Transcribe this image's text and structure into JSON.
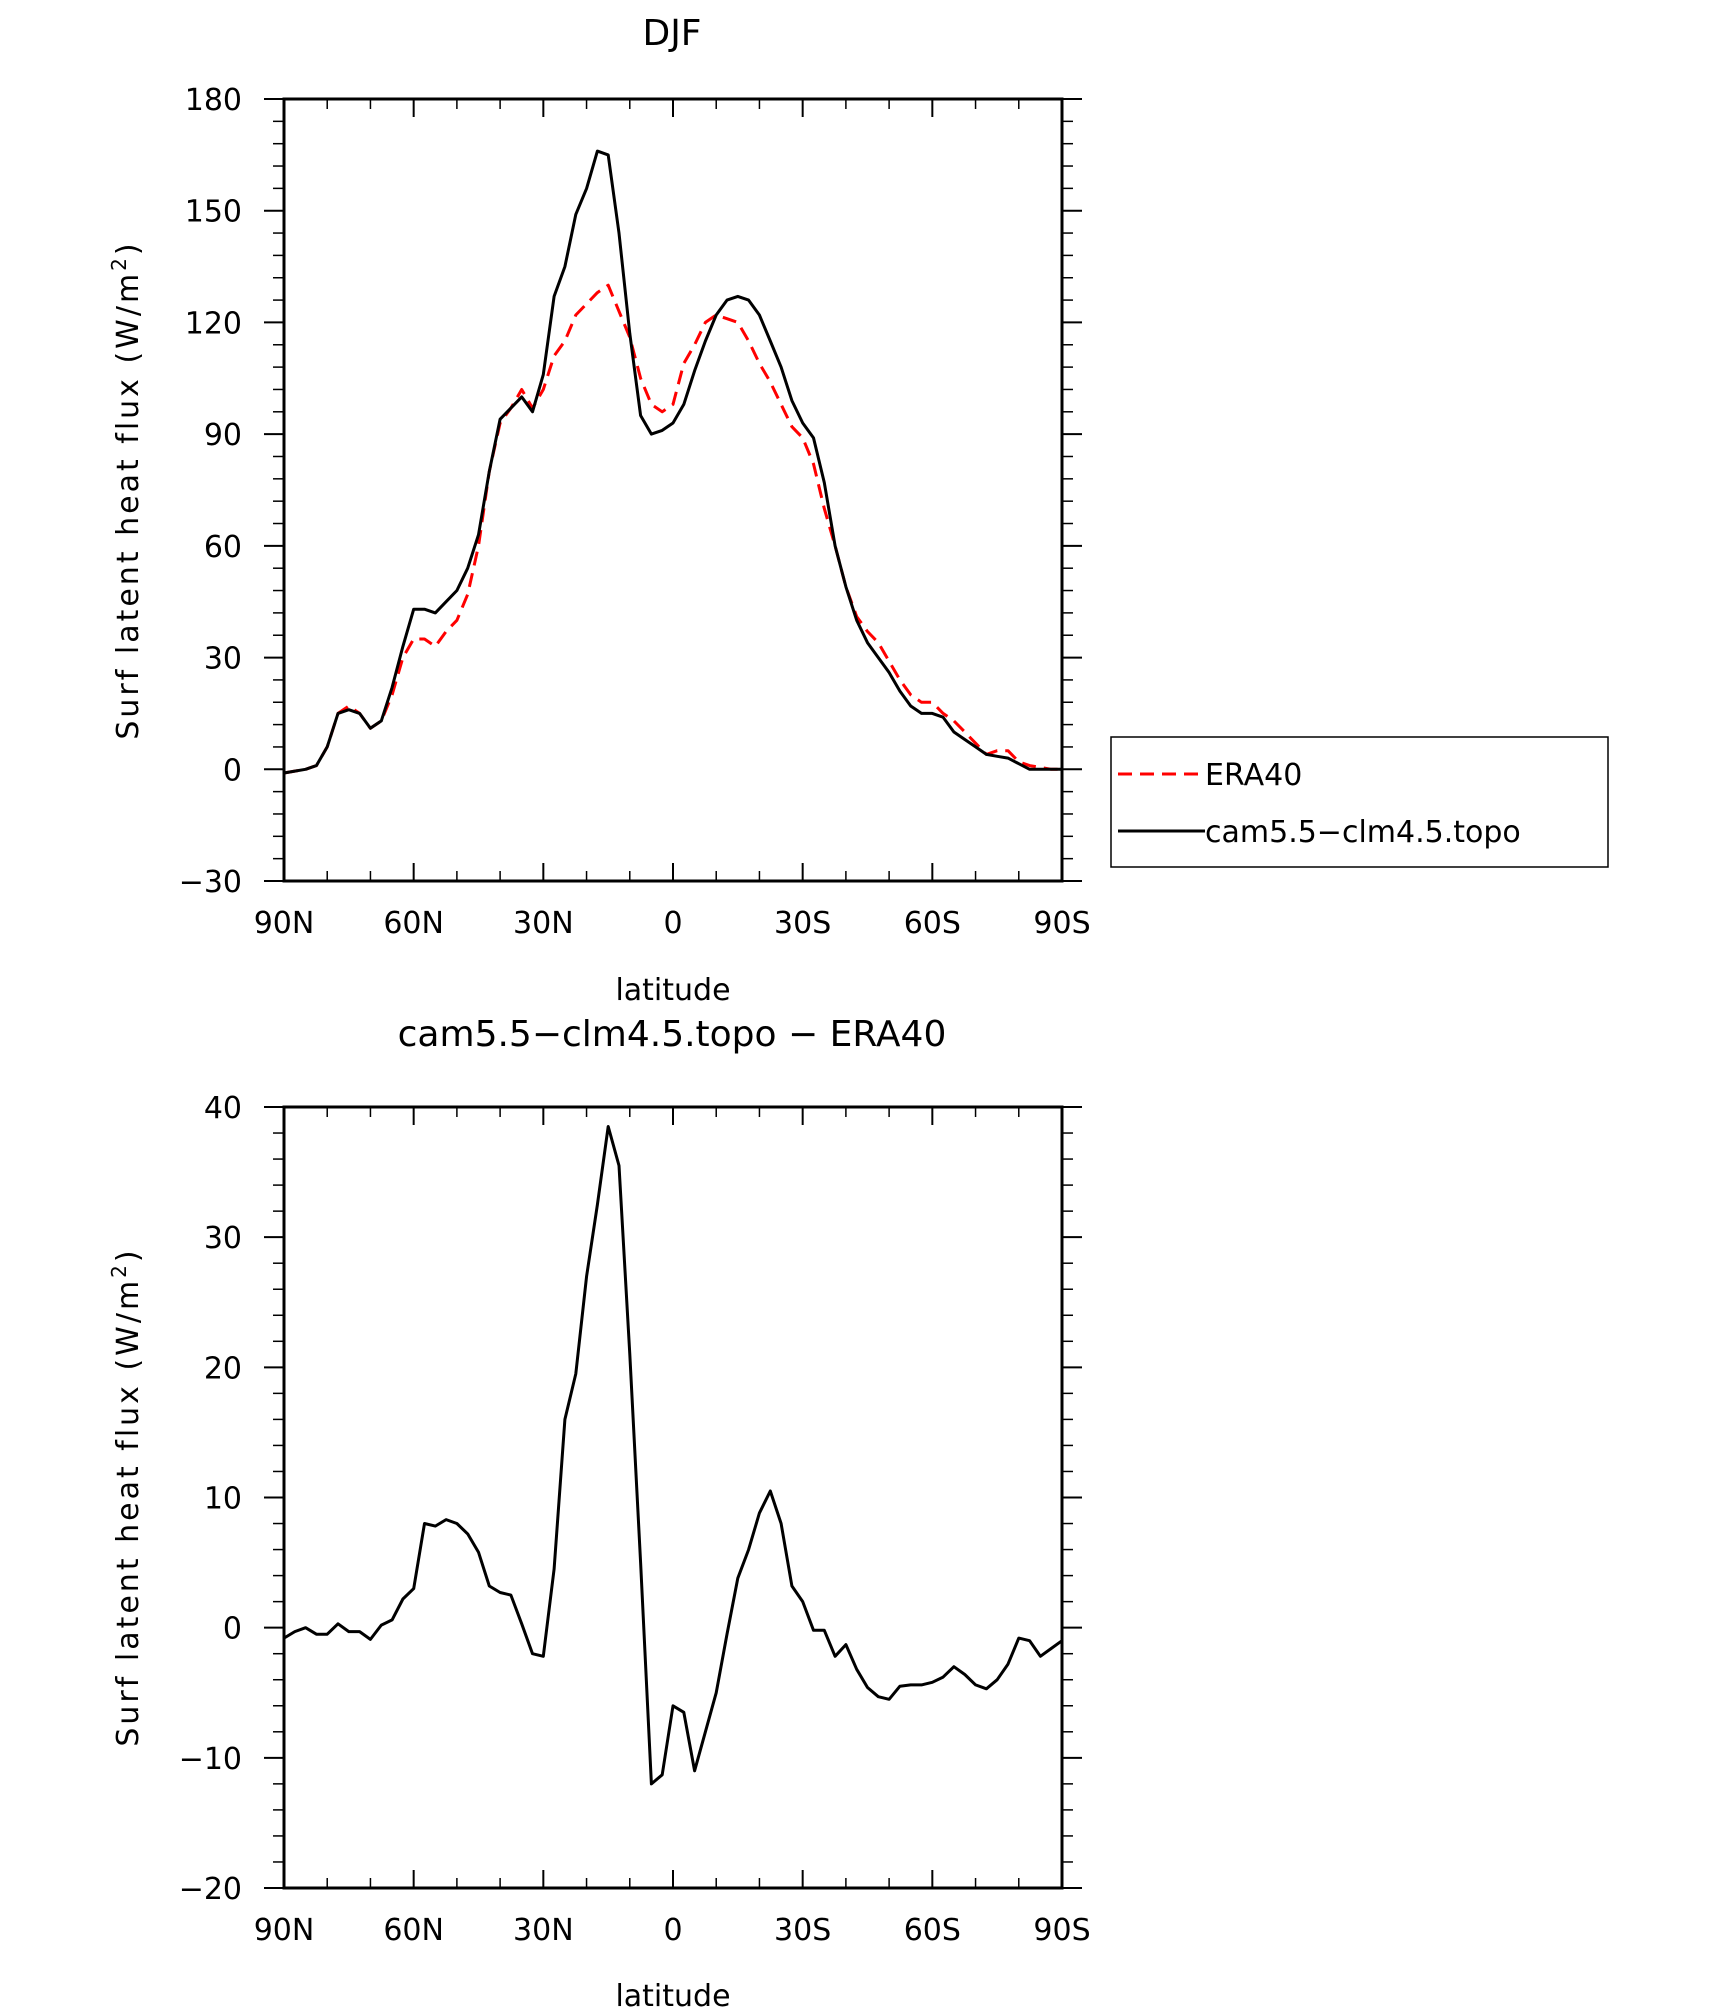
{
  "chart_data": [
    {
      "type": "line",
      "title": "DJF",
      "xlabel": "latitude",
      "ylabel": "Surf latent heat flux (W/m²)",
      "ylabel_base": "Surf latent heat flux (W/m",
      "ylabel_sup": "2",
      "ylabel_close": ")",
      "xlim": [
        90,
        -90
      ],
      "ylim": [
        -30,
        180
      ],
      "xticks": [
        90,
        60,
        30,
        0,
        -30,
        -60,
        -90
      ],
      "xtick_labels": [
        "90N",
        "60N",
        "30N",
        "0",
        "30S",
        "60S",
        "90S"
      ],
      "yticks": [
        -30,
        0,
        30,
        60,
        90,
        120,
        150,
        180
      ],
      "ytick_labels": [
        "−30",
        "0",
        "30",
        "60",
        "90",
        "120",
        "150",
        "180"
      ],
      "legend_position": "right",
      "grid": false,
      "x": [
        90,
        87.5,
        85,
        82.5,
        80,
        77.5,
        75,
        72.5,
        70,
        67.5,
        65,
        62.5,
        60,
        57.5,
        55,
        52.5,
        50,
        47.5,
        45,
        42.5,
        40,
        37.5,
        35,
        32.5,
        30,
        27.5,
        25,
        22.5,
        20,
        17.5,
        15,
        12.5,
        10,
        7.5,
        5,
        2.5,
        0,
        -2.5,
        -5,
        -7.5,
        -10,
        -12.5,
        -15,
        -17.5,
        -20,
        -22.5,
        -25,
        -27.5,
        -30,
        -32.5,
        -35,
        -37.5,
        -40,
        -42.5,
        -45,
        -47.5,
        -50,
        -52.5,
        -55,
        -57.5,
        -60,
        -62.5,
        -65,
        -67.5,
        -70,
        -72.5,
        -75,
        -77.5,
        -80,
        -82.5,
        -85,
        -87.5,
        -90
      ],
      "series": [
        {
          "name": "ERA40",
          "color": "#ff0000",
          "dash": "dashed",
          "values": [
            -1,
            -0.5,
            0,
            1,
            6,
            15,
            17,
            15,
            11,
            13,
            20,
            30,
            35,
            35,
            33,
            37,
            40,
            47,
            60,
            80,
            93,
            97,
            102,
            97,
            102,
            111,
            115,
            122,
            125,
            128,
            130,
            123,
            116,
            105,
            98,
            96,
            98,
            109,
            114,
            120,
            122,
            121,
            120,
            115,
            109,
            104,
            98,
            92,
            89,
            82,
            70,
            60,
            49,
            41,
            37,
            34,
            29,
            24,
            20,
            18,
            18,
            15,
            13,
            10,
            7,
            4,
            5,
            5,
            2,
            1,
            0.5,
            0,
            0
          ]
        },
        {
          "name": "cam5.5−clm4.5.topo",
          "color": "#000000",
          "dash": "solid",
          "values": [
            -1,
            -0.5,
            0,
            1,
            6,
            15,
            16,
            15,
            11,
            13,
            22,
            33,
            43,
            43,
            42,
            45,
            48,
            54,
            63,
            80,
            94,
            97,
            100,
            96,
            106,
            127,
            135,
            149,
            156,
            166,
            165,
            144,
            117,
            95,
            90,
            91,
            93,
            98,
            107,
            115,
            122,
            126,
            127,
            126,
            122,
            115,
            108,
            99,
            93,
            89,
            77,
            60,
            49,
            40,
            34,
            30,
            26,
            21,
            17,
            15,
            15,
            14,
            10,
            8,
            6,
            4,
            3.5,
            3,
            1.5,
            0,
            0,
            0,
            0
          ]
        }
      ]
    },
    {
      "type": "line",
      "title": "cam5.5−clm4.5.topo − ERA40",
      "xlabel": "latitude",
      "ylabel": "Surf latent heat flux (W/m²)",
      "ylabel_base": "Surf latent heat flux (W/m",
      "ylabel_sup": "2",
      "ylabel_close": ")",
      "xlim": [
        90,
        -90
      ],
      "ylim": [
        -20,
        40
      ],
      "xticks": [
        90,
        60,
        30,
        0,
        -30,
        -60,
        -90
      ],
      "xtick_labels": [
        "90N",
        "60N",
        "30N",
        "0",
        "30S",
        "60S",
        "90S"
      ],
      "yticks": [
        -20,
        -10,
        0,
        10,
        20,
        30,
        40
      ],
      "ytick_labels": [
        "−20",
        "−10",
        "0",
        "10",
        "20",
        "30",
        "40"
      ],
      "grid": false,
      "x": [
        90,
        87.5,
        85,
        82.5,
        80,
        77.5,
        75,
        72.5,
        70,
        67.5,
        65,
        62.5,
        60,
        57.5,
        55,
        52.5,
        50,
        47.5,
        45,
        42.5,
        40,
        37.5,
        35,
        32.5,
        30,
        27.5,
        25,
        22.5,
        20,
        17.5,
        15,
        12.5,
        10,
        7.5,
        5,
        2.5,
        0,
        -2.5,
        -5,
        -7.5,
        -10,
        -12.5,
        -15,
        -17.5,
        -20,
        -22.5,
        -25,
        -27.5,
        -30,
        -32.5,
        -35,
        -37.5,
        -40,
        -42.5,
        -45,
        -47.5,
        -50,
        -52.5,
        -55,
        -57.5,
        -60,
        -62.5,
        -65,
        -67.5,
        -70,
        -72.5,
        -75,
        -77.5,
        -80,
        -82.5,
        -85,
        -87.5,
        -90
      ],
      "series": [
        {
          "color": "#000000",
          "dash": "solid",
          "values": [
            -0.8,
            -0.3,
            0,
            -0.5,
            -0.5,
            0.3,
            -0.3,
            -0.3,
            -0.9,
            0.2,
            0.6,
            2.2,
            3,
            8,
            7.8,
            8.3,
            8,
            7.2,
            5.8,
            3.2,
            2.7,
            2.5,
            0.3,
            -2,
            -2.2,
            4.5,
            16,
            19.5,
            27,
            32.5,
            38.5,
            35.5,
            21,
            5,
            -12,
            -11.3,
            -6,
            -6.5,
            -11,
            -8,
            -5,
            -0.5,
            3.8,
            6,
            8.8,
            10.5,
            8,
            3.2,
            2,
            -0.2,
            -0.2,
            -2.2,
            -1.3,
            -3.2,
            -4.6,
            -5.3,
            -5.5,
            -4.5,
            -4.4,
            -4.4,
            -4.2,
            -3.8,
            -3,
            -3.6,
            -4.4,
            -4.7,
            -4,
            -2.8,
            -0.8,
            -1,
            -2.2,
            -1.6,
            -1
          ]
        }
      ]
    }
  ]
}
